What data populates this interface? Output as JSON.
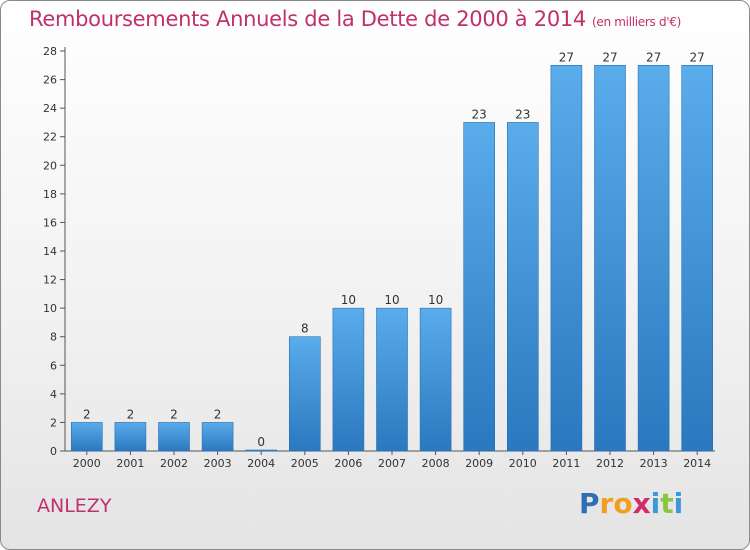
{
  "chart_data": {
    "type": "bar",
    "title": "Remboursements Annuels de la Dette de 2000 à 2014",
    "subtitle": "(en milliers d'€)",
    "categories": [
      "2000",
      "2001",
      "2002",
      "2003",
      "2004",
      "2005",
      "2006",
      "2007",
      "2008",
      "2009",
      "2010",
      "2011",
      "2012",
      "2013",
      "2014"
    ],
    "values": [
      2,
      2,
      2,
      2,
      0,
      8,
      10,
      10,
      10,
      23,
      23,
      27,
      27,
      27,
      27
    ],
    "ylim": [
      0,
      28
    ],
    "yticks": [
      0,
      2,
      4,
      6,
      8,
      10,
      12,
      14,
      16,
      18,
      20,
      22,
      24,
      26,
      28
    ],
    "grid": false,
    "bar_color": "#3a8fd6"
  },
  "footer": {
    "place": "ANLEZY",
    "logo_letters": [
      "P",
      "r",
      "o",
      "x",
      "i",
      "t",
      "i"
    ],
    "logo_colors": [
      "#2f6db5",
      "#f0a020",
      "#f0a020",
      "#d42a6a",
      "#3a9ad9",
      "#8cc63f",
      "#3a9ad9"
    ]
  },
  "colors": {
    "title": "#c0306a",
    "axis": "#555555"
  }
}
